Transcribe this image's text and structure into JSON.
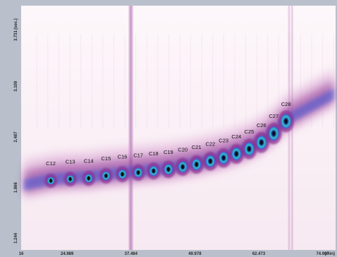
{
  "chart_data": {
    "type": "heatmap",
    "title": "",
    "xlabel": "",
    "ylabel": "",
    "x_unit": "(min)",
    "y_unit": "(sec.)",
    "xlim": [
      16,
      77.5
    ],
    "ylim": [
      1.1,
      4.1
    ],
    "x_ticks": [
      "16",
      "24.989",
      "37.484",
      "49.978",
      "62.473",
      "74.967"
    ],
    "y_ticks": [
      "1.244",
      "1.866",
      "2.487",
      "3.109",
      "3.731"
    ],
    "peaks": [
      {
        "label": "C12",
        "x": 21.8,
        "y": 1.95
      },
      {
        "label": "C13",
        "x": 25.6,
        "y": 1.97
      },
      {
        "label": "C14",
        "x": 29.2,
        "y": 1.98
      },
      {
        "label": "C15",
        "x": 32.6,
        "y": 2.01
      },
      {
        "label": "C16",
        "x": 35.8,
        "y": 2.03
      },
      {
        "label": "C17",
        "x": 38.9,
        "y": 2.05
      },
      {
        "label": "C18",
        "x": 41.9,
        "y": 2.07
      },
      {
        "label": "C19",
        "x": 44.8,
        "y": 2.09
      },
      {
        "label": "C20",
        "x": 47.6,
        "y": 2.12
      },
      {
        "label": "C21",
        "x": 50.3,
        "y": 2.15
      },
      {
        "label": "C22",
        "x": 53.0,
        "y": 2.19
      },
      {
        "label": "C23",
        "x": 55.6,
        "y": 2.23
      },
      {
        "label": "C24",
        "x": 58.1,
        "y": 2.28
      },
      {
        "label": "C25",
        "x": 60.6,
        "y": 2.34
      },
      {
        "label": "C26",
        "x": 63.0,
        "y": 2.42
      },
      {
        "label": "C27",
        "x": 65.4,
        "y": 2.53
      },
      {
        "label": "C28",
        "x": 67.8,
        "y": 2.68
      }
    ],
    "grid": false,
    "legend": "none"
  },
  "colors": {
    "frame": "#b9c0cc",
    "plot_bg": "#fbf4f7",
    "band_outer": "#d08cc8",
    "band_mid": "#8a2f8f",
    "band_core": "#2b4fd8",
    "hot": "#35d0c8",
    "peak_center": "#0a0a0a"
  }
}
